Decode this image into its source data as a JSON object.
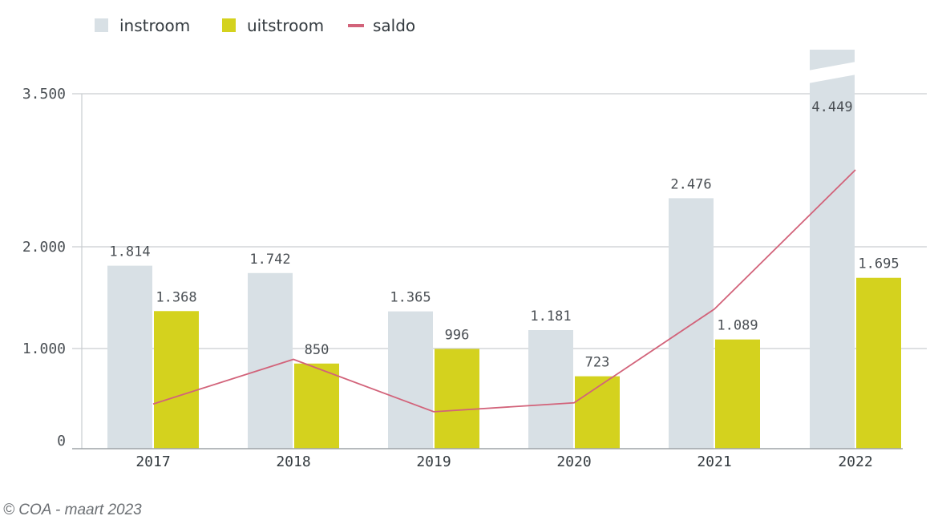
{
  "chart_data": {
    "type": "bar",
    "categories": [
      "2017",
      "2018",
      "2019",
      "2020",
      "2021",
      "2022"
    ],
    "series": [
      {
        "name": "instroom",
        "kind": "bar",
        "color": "#d8e0e5",
        "values": [
          1814,
          1742,
          1365,
          1181,
          2476,
          4449
        ],
        "labels": [
          "1.814",
          "1.742",
          "1.365",
          "1.181",
          "2.476",
          "4.449"
        ]
      },
      {
        "name": "uitstroom",
        "kind": "bar",
        "color": "#d4d21e",
        "values": [
          1368,
          850,
          996,
          723,
          1089,
          1695
        ],
        "labels": [
          "1.368",
          "850",
          "996",
          "723",
          "1.089",
          "1.695"
        ]
      },
      {
        "name": "saldo",
        "kind": "line",
        "color": "#d2637a",
        "values": [
          446,
          892,
          369,
          458,
          1387,
          2754
        ]
      }
    ],
    "y_ticks": [
      {
        "value": 0,
        "label": "0"
      },
      {
        "value": 1000,
        "label": "1.000"
      },
      {
        "value": 2000,
        "label": "2.000"
      },
      {
        "value": 3500,
        "label": "3.500"
      }
    ],
    "ylim": [
      0,
      3500
    ],
    "axis_break": {
      "category": "2022",
      "series": "instroom"
    },
    "grid": true,
    "legend_position": "top-left"
  },
  "source": "© COA - maart 2023"
}
